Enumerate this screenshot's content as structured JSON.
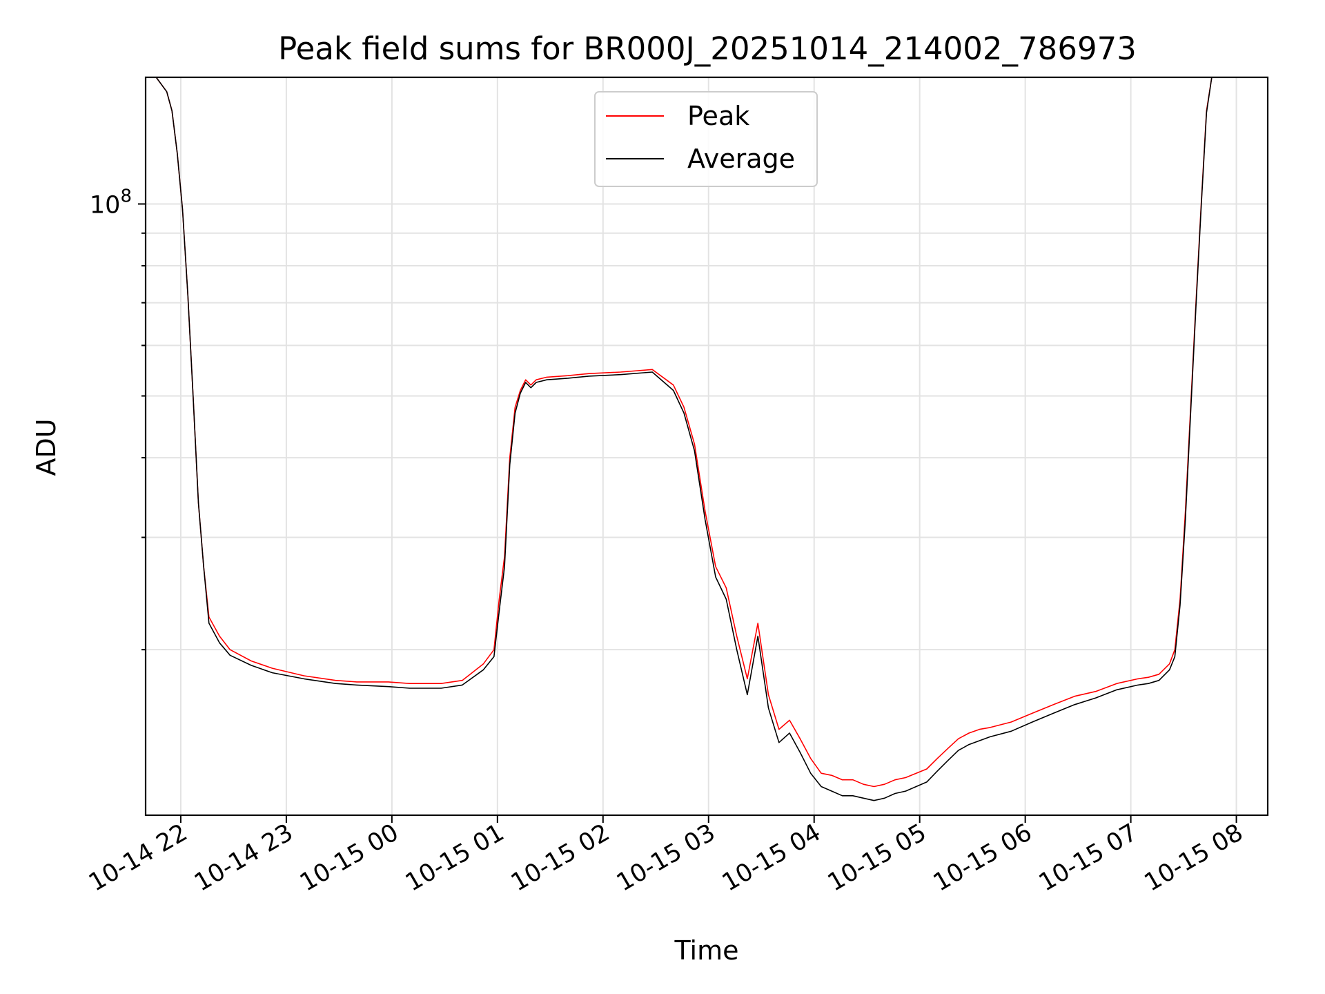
{
  "chart_data": {
    "type": "line",
    "title": "Peak field sums for BR000J_20251014_214002_786973",
    "xlabel": "Time",
    "ylabel": "ADU",
    "yscale": "log",
    "grid": true,
    "legend_location": "upper center",
    "x_unit": "hours since 2025-10-14 21:40",
    "xlim": [
      0,
      10.63
    ],
    "ylim": [
      11000000,
      158000000
    ],
    "x_ticks": [
      {
        "label": "10-14 22",
        "hours": 0.333
      },
      {
        "label": "10-14 23",
        "hours": 1.333
      },
      {
        "label": "10-15 00",
        "hours": 2.333
      },
      {
        "label": "10-15 01",
        "hours": 3.333
      },
      {
        "label": "10-15 02",
        "hours": 4.333
      },
      {
        "label": "10-15 03",
        "hours": 5.333
      },
      {
        "label": "10-15 04",
        "hours": 6.333
      },
      {
        "label": "10-15 05",
        "hours": 7.333
      },
      {
        "label": "10-15 06",
        "hours": 8.333
      },
      {
        "label": "10-15 07",
        "hours": 9.333
      },
      {
        "label": "10-15 08",
        "hours": 10.333
      }
    ],
    "y_major_tick": {
      "value": 100000000,
      "label_base": "10",
      "label_exp": "8"
    },
    "y_minor_ticks": [
      20000000,
      30000000,
      40000000,
      50000000,
      60000000,
      70000000,
      80000000,
      90000000
    ],
    "series": [
      {
        "name": "Peak",
        "color": "#ff0000",
        "x": [
          0.0,
          0.1,
          0.2,
          0.25,
          0.3,
          0.35,
          0.4,
          0.45,
          0.5,
          0.55,
          0.6,
          0.7,
          0.8,
          1.0,
          1.2,
          1.5,
          1.8,
          2.0,
          2.3,
          2.5,
          2.8,
          3.0,
          3.2,
          3.3,
          3.35,
          3.4,
          3.45,
          3.5,
          3.55,
          3.6,
          3.65,
          3.7,
          3.8,
          4.0,
          4.2,
          4.5,
          4.8,
          5.0,
          5.1,
          5.2,
          5.3,
          5.4,
          5.5,
          5.6,
          5.7,
          5.8,
          5.9,
          6.0,
          6.1,
          6.2,
          6.3,
          6.4,
          6.5,
          6.6,
          6.7,
          6.8,
          6.9,
          7.0,
          7.1,
          7.2,
          7.3,
          7.4,
          7.5,
          7.6,
          7.7,
          7.8,
          7.9,
          8.0,
          8.2,
          8.4,
          8.6,
          8.8,
          9.0,
          9.2,
          9.4,
          9.5,
          9.6,
          9.7,
          9.75,
          9.8,
          9.85,
          9.9,
          9.95,
          10.0,
          10.05,
          10.1,
          10.15,
          10.2,
          10.25,
          10.3,
          10.35,
          10.4,
          10.5,
          10.63
        ],
        "y": [
          158000000,
          158000000,
          150000000,
          140000000,
          120000000,
          98000000,
          72000000,
          50000000,
          34000000,
          27000000,
          22500000,
          21000000,
          20000000,
          19200000,
          18700000,
          18200000,
          17900000,
          17800000,
          17800000,
          17700000,
          17700000,
          17900000,
          19000000,
          20000000,
          24000000,
          28000000,
          40000000,
          48000000,
          51000000,
          53000000,
          52000000,
          53000000,
          53500000,
          53800000,
          54200000,
          54500000,
          55000000,
          52000000,
          48000000,
          42000000,
          33000000,
          27000000,
          25000000,
          21000000,
          18000000,
          22000000,
          17000000,
          15000000,
          15500000,
          14500000,
          13500000,
          12800000,
          12700000,
          12500000,
          12500000,
          12300000,
          12200000,
          12300000,
          12500000,
          12600000,
          12800000,
          13000000,
          13500000,
          14000000,
          14500000,
          14800000,
          15000000,
          15100000,
          15400000,
          15900000,
          16400000,
          16900000,
          17200000,
          17700000,
          18000000,
          18100000,
          18300000,
          19000000,
          20000000,
          24000000,
          33000000,
          48000000,
          70000000,
          100000000,
          140000000,
          158000000,
          158000000,
          158000000,
          158000000,
          158000000,
          158000000,
          158000000,
          158000000,
          158000000
        ]
      },
      {
        "name": "Average",
        "color": "#000000",
        "x": [
          0.0,
          0.1,
          0.2,
          0.25,
          0.3,
          0.35,
          0.4,
          0.45,
          0.5,
          0.55,
          0.6,
          0.7,
          0.8,
          1.0,
          1.2,
          1.5,
          1.8,
          2.0,
          2.3,
          2.5,
          2.8,
          3.0,
          3.2,
          3.3,
          3.35,
          3.4,
          3.45,
          3.5,
          3.55,
          3.6,
          3.65,
          3.7,
          3.8,
          4.0,
          4.2,
          4.5,
          4.8,
          5.0,
          5.1,
          5.2,
          5.3,
          5.4,
          5.5,
          5.6,
          5.7,
          5.8,
          5.9,
          6.0,
          6.1,
          6.2,
          6.3,
          6.4,
          6.5,
          6.6,
          6.7,
          6.8,
          6.9,
          7.0,
          7.1,
          7.2,
          7.3,
          7.4,
          7.5,
          7.6,
          7.7,
          7.8,
          7.9,
          8.0,
          8.2,
          8.4,
          8.6,
          8.8,
          9.0,
          9.2,
          9.4,
          9.5,
          9.6,
          9.7,
          9.75,
          9.8,
          9.85,
          9.9,
          9.95,
          10.0,
          10.05,
          10.1,
          10.15,
          10.2,
          10.25,
          10.3,
          10.35,
          10.4,
          10.5,
          10.63
        ],
        "y": [
          158000000,
          158000000,
          150000000,
          140000000,
          120000000,
          98000000,
          72000000,
          50000000,
          34000000,
          27000000,
          22000000,
          20500000,
          19600000,
          18900000,
          18400000,
          18000000,
          17700000,
          17600000,
          17500000,
          17400000,
          17400000,
          17600000,
          18600000,
          19500000,
          23000000,
          27000000,
          39000000,
          47000000,
          50500000,
          52500000,
          51500000,
          52500000,
          53000000,
          53300000,
          53700000,
          54000000,
          54500000,
          51000000,
          47000000,
          41000000,
          32000000,
          26000000,
          24000000,
          20000000,
          17000000,
          21000000,
          16200000,
          14300000,
          14800000,
          13800000,
          12800000,
          12200000,
          12000000,
          11800000,
          11800000,
          11700000,
          11600000,
          11700000,
          11900000,
          12000000,
          12200000,
          12400000,
          12900000,
          13400000,
          13900000,
          14200000,
          14400000,
          14600000,
          14900000,
          15400000,
          15900000,
          16400000,
          16800000,
          17300000,
          17600000,
          17700000,
          17900000,
          18600000,
          19500000,
          23500000,
          32000000,
          47000000,
          69000000,
          99000000,
          139000000,
          158000000,
          158000000,
          158000000,
          158000000,
          158000000,
          158000000,
          158000000,
          158000000,
          158000000
        ]
      }
    ]
  }
}
